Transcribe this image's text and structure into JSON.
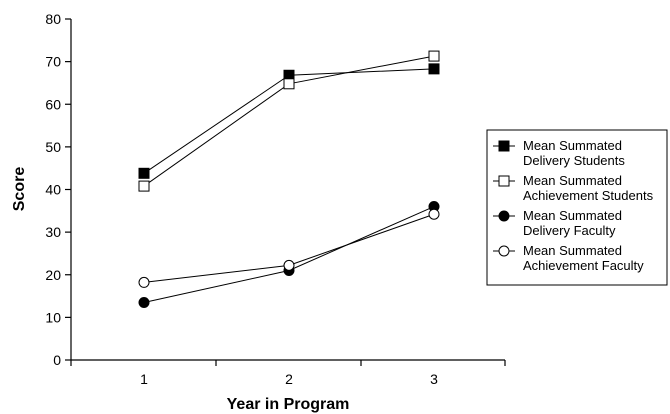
{
  "chart_data": {
    "type": "line",
    "xlabel": "Year in Program",
    "ylabel": "Score",
    "categories": [
      "1",
      "2",
      "3"
    ],
    "ylim": [
      0,
      80
    ],
    "yticks": [
      0,
      10,
      20,
      30,
      40,
      50,
      60,
      70,
      80
    ],
    "grid": false,
    "legend_position": "right",
    "series": [
      {
        "name_lines": [
          "Mean Summated",
          "Delivery Students"
        ],
        "marker": "square-filled",
        "values": [
          43.8,
          66.8,
          68.3
        ]
      },
      {
        "name_lines": [
          "Mean Summated",
          "Achievement Students"
        ],
        "marker": "square-open",
        "values": [
          40.8,
          64.8,
          71.3
        ]
      },
      {
        "name_lines": [
          "Mean Summated",
          "Delivery Faculty"
        ],
        "marker": "circle-filled",
        "values": [
          13.5,
          21.0,
          36.0
        ]
      },
      {
        "name_lines": [
          "Mean Summated",
          "Achievement Faculty"
        ],
        "marker": "circle-open",
        "values": [
          18.2,
          22.2,
          34.2
        ]
      }
    ]
  }
}
